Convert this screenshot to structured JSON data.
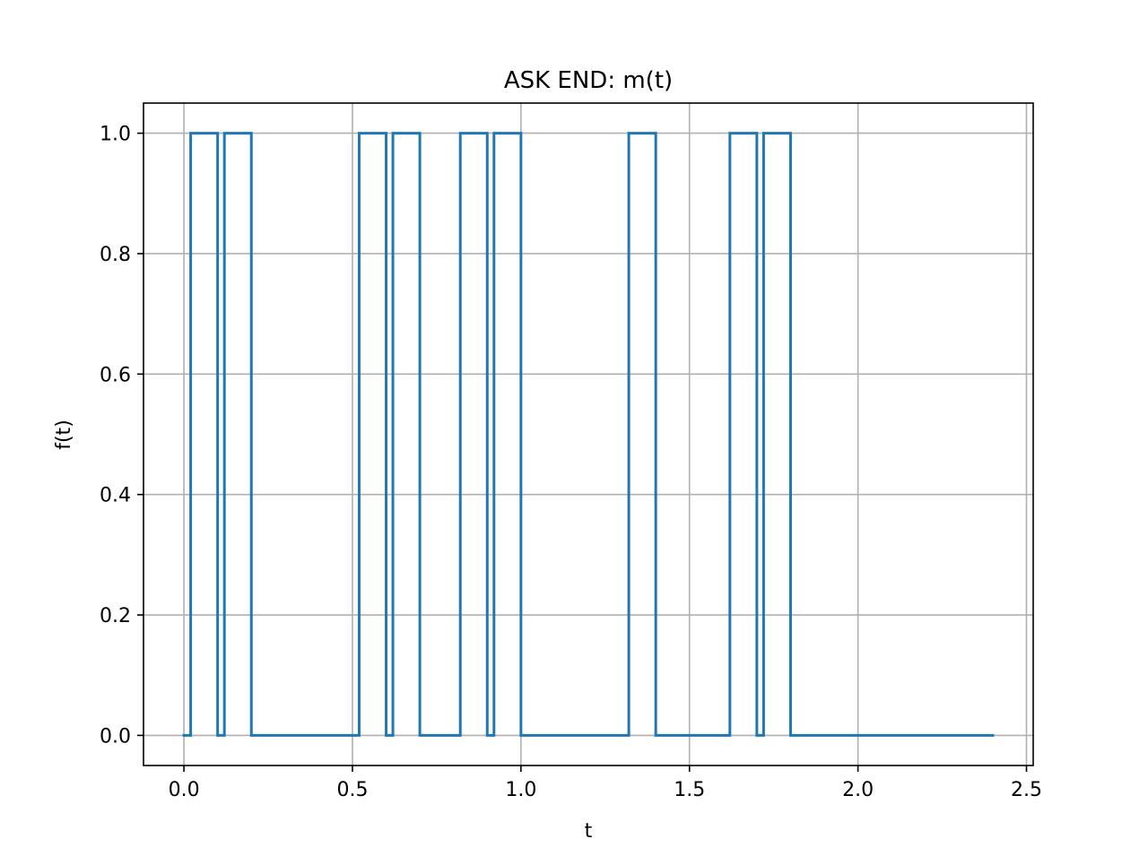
{
  "chart_data": {
    "type": "line",
    "title": "ASK END: m(t)",
    "xlabel": "t",
    "ylabel": "f(t)",
    "xlim": [
      -0.12,
      2.52
    ],
    "ylim": [
      -0.05,
      1.05
    ],
    "xticks": [
      0.0,
      0.5,
      1.0,
      1.5,
      2.0,
      2.5
    ],
    "xtick_labels": [
      "0.0",
      "0.5",
      "1.0",
      "1.5",
      "2.0",
      "2.5"
    ],
    "yticks": [
      0.0,
      0.2,
      0.4,
      0.6,
      0.8,
      1.0
    ],
    "ytick_labels": [
      "0.0",
      "0.2",
      "0.4",
      "0.6",
      "0.8",
      "1.0"
    ],
    "grid": true,
    "series": [
      {
        "color": "#1f77b4",
        "x": [
          0.0,
          0.02,
          0.02,
          0.1,
          0.1,
          0.12,
          0.12,
          0.2,
          0.2,
          0.52,
          0.52,
          0.6,
          0.6,
          0.62,
          0.62,
          0.7,
          0.7,
          0.82,
          0.82,
          0.9,
          0.9,
          0.92,
          0.92,
          1.0,
          1.0,
          1.32,
          1.32,
          1.4,
          1.4,
          1.62,
          1.62,
          1.7,
          1.7,
          1.72,
          1.72,
          1.8,
          1.8,
          2.4
        ],
        "y": [
          0,
          0,
          1,
          1,
          0,
          0,
          1,
          1,
          0,
          0,
          1,
          1,
          0,
          0,
          1,
          1,
          0,
          0,
          1,
          1,
          0,
          0,
          1,
          1,
          0,
          0,
          1,
          1,
          0,
          0,
          1,
          1,
          0,
          0,
          1,
          1,
          0,
          0
        ]
      }
    ]
  }
}
